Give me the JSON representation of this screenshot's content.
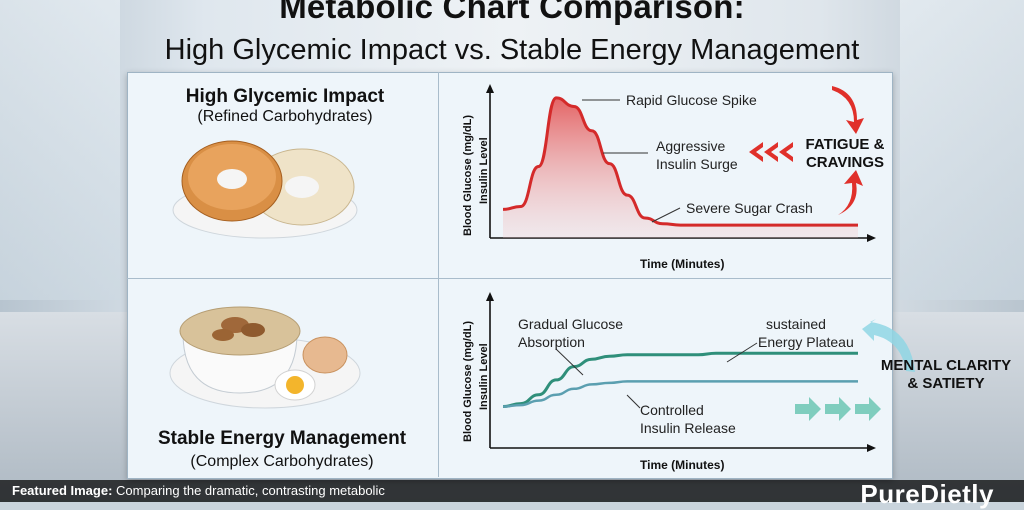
{
  "title": "Metabolic Chart Comparison:",
  "subtitle": "High Glycemic Impact vs. Stable Energy Management",
  "top_panel": {
    "heading": "High Glycemic Impact",
    "sub": "(Refined Carbohydrates)"
  },
  "bottom_panel": {
    "heading": "Stable Energy Management",
    "sub": "(Complex Carbohydrates)"
  },
  "chart_data": [
    {
      "type": "line",
      "title": "",
      "xlabel": "Time (Minutes)",
      "ylabel": "Blood Glucose (mg/dL)",
      "ylabel2": "Insulin Level",
      "x": [
        0,
        1,
        2,
        3,
        4,
        5,
        6,
        7,
        8,
        9,
        10,
        11,
        12,
        13,
        14,
        15,
        16,
        17,
        18,
        19,
        20
      ],
      "series": [
        {
          "name": "",
          "values": [
            20,
            22,
            50,
            98,
            92,
            75,
            52,
            30,
            14,
            10,
            9,
            9,
            9,
            9,
            9,
            9,
            9,
            9,
            9,
            9,
            9
          ]
        }
      ],
      "annotations": [
        "Rapid Glucose Spike",
        "Aggressive",
        "Insulin Surge",
        "Severe Sugar Crash"
      ],
      "side_label": [
        "FATIGUE &",
        "CRAVINGS"
      ]
    },
    {
      "type": "area",
      "title": "",
      "xlabel": "Time (Minutes)",
      "ylabel": "Blood Glucose (mg/dL)",
      "ylabel2": "Insulin Level",
      "x": [
        0,
        1,
        2,
        3,
        4,
        5,
        6,
        7,
        8,
        9,
        10,
        11,
        12,
        13,
        14,
        15,
        16,
        17,
        18,
        19,
        20
      ],
      "series": [
        {
          "name": "",
          "values": [
            28,
            30,
            36,
            46,
            55,
            60,
            62,
            63,
            63,
            63,
            63,
            63,
            64,
            64,
            64,
            64,
            64,
            64,
            64,
            64,
            64
          ]
        },
        {
          "name": "",
          "values": [
            28,
            29,
            32,
            36,
            40,
            43,
            44,
            45,
            45,
            45,
            45,
            45,
            45,
            45,
            45,
            45,
            45,
            45,
            45,
            45,
            45
          ]
        }
      ],
      "annotations": [
        "Gradual Glucose",
        "Absorption",
        "sustained",
        "Energy Plateau",
        "Controlled",
        "Insulin Release"
      ],
      "side_label": [
        "MENTAL CLARITY",
        "& SATIETY"
      ]
    }
  ],
  "caption": {
    "label": "Featured Image:",
    "text": "Comparing the dramatic, contrasting metabolic"
  },
  "brand": "PureDietly",
  "colors": {
    "spike": "#d42a2a",
    "stable": "#2f8f7a",
    "board": "#eef5fa"
  }
}
